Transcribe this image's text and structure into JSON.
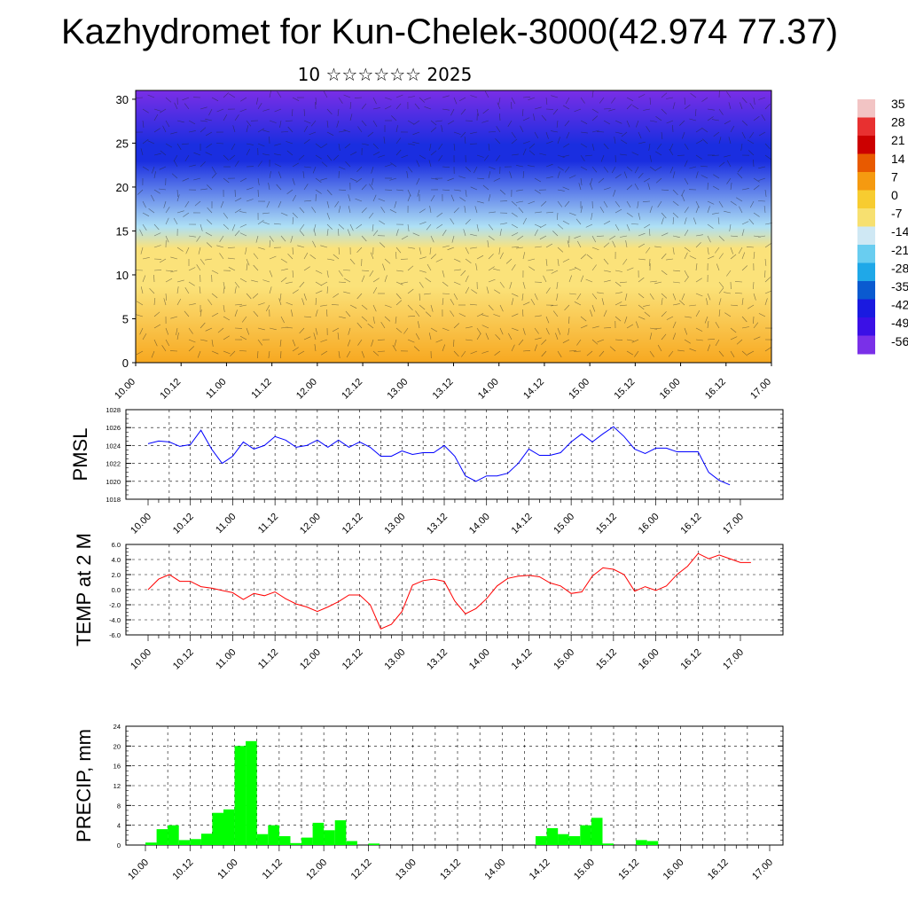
{
  "title": "Kazhydromet for Kun-Chelek-3000(42.974 77.37)",
  "subtitle": "10 ☆☆☆☆☆☆ 2025",
  "chart_data": [
    {
      "type": "heatmap",
      "ylabel": "",
      "ylim": [
        0,
        31
      ],
      "yticks": [
        0,
        5,
        10,
        15,
        20,
        25,
        30
      ],
      "x_tick_labels": [
        "10.00",
        "10.12",
        "11.00",
        "11.12",
        "12.00",
        "12.12",
        "13.00",
        "13.12",
        "14.00",
        "14.12",
        "15.00",
        "15.12",
        "16.00",
        "16.12",
        "17.00"
      ],
      "colorbar_labels": [
        "35",
        "28",
        "21",
        "14",
        "7",
        "0",
        "-7",
        "-14",
        "-21",
        "-28",
        "-35",
        "-42",
        "-49",
        "-56"
      ],
      "colorbar_colors": [
        "#f2c4c4",
        "#e83030",
        "#cc0000",
        "#e85a00",
        "#f59a10",
        "#f7cc30",
        "#f7e070",
        "#cfe8f4",
        "#69cdf0",
        "#1fa8e8",
        "#0a5ad0",
        "#1a1ae0",
        "#3b10e6",
        "#7a30e8"
      ],
      "field_colors": {
        "low": "#f7a820",
        "mid": "#fbe27a",
        "transition": "#aee0f5",
        "cold": "#1a2ee0",
        "top": "#7a2ee6"
      },
      "annotation": "wind barbs overlay"
    },
    {
      "type": "line",
      "ylabel": "PMSL",
      "ylim": [
        1018,
        1028
      ],
      "yticks": [
        1018,
        1020,
        1022,
        1024,
        1026,
        1028
      ],
      "x_tick_labels": [
        "10.00",
        "10.12",
        "11.00",
        "11.12",
        "12.00",
        "12.12",
        "13.00",
        "13.12",
        "14.00",
        "14.12",
        "15.00",
        "15.12",
        "16.00",
        "16.12",
        "17.00"
      ],
      "series": [
        {
          "color": "#0000ff",
          "x_start": 0,
          "x_step": 3,
          "values": [
            1024.2,
            1024.5,
            1024.4,
            1023.9,
            1024.1,
            1025.7,
            1023.6,
            1022.0,
            1022.8,
            1024.4,
            1023.6,
            1024.0,
            1025.0,
            1024.6,
            1023.8,
            1024.0,
            1024.6,
            1023.8,
            1024.6,
            1023.8,
            1024.4,
            1023.8,
            1022.8,
            1022.8,
            1023.4,
            1023.0,
            1023.2,
            1023.2,
            1024.0,
            1022.8,
            1020.6,
            1020.0,
            1020.6,
            1020.6,
            1020.9,
            1022.0,
            1023.6,
            1022.9,
            1022.9,
            1023.2,
            1024.4,
            1025.3,
            1024.4,
            1025.3,
            1026.1,
            1025.0,
            1023.6,
            1023.1,
            1023.7,
            1023.7,
            1023.3,
            1023.3,
            1023.3,
            1021.0,
            1020.1,
            1019.6
          ]
        }
      ]
    },
    {
      "type": "line",
      "ylabel": "TEMP at 2 M",
      "ylim": [
        -6,
        6
      ],
      "yticks": [
        -6,
        -4,
        -2,
        0,
        2,
        4,
        6
      ],
      "ytick_labels": [
        "-6.0",
        "-4.0",
        "-2.0",
        "0.0",
        "2.0",
        "4.0",
        "6.0"
      ],
      "x_tick_labels": [
        "10.00",
        "10.12",
        "11.00",
        "11.12",
        "12.00",
        "12.12",
        "13.00",
        "13.12",
        "14.00",
        "14.12",
        "15.00",
        "15.12",
        "16.00",
        "16.12",
        "17.00"
      ],
      "series": [
        {
          "color": "#ff0000",
          "x_start": 0,
          "x_step": 3,
          "values": [
            0.0,
            1.4,
            2.0,
            1.1,
            1.1,
            0.4,
            0.2,
            -0.1,
            -0.4,
            -1.3,
            -0.5,
            -0.8,
            -0.3,
            -1.2,
            -1.9,
            -2.3,
            -2.9,
            -2.3,
            -1.6,
            -0.7,
            -0.7,
            -2.0,
            -5.2,
            -4.6,
            -2.9,
            0.6,
            1.2,
            1.4,
            1.1,
            -1.5,
            -3.2,
            -2.5,
            -1.2,
            0.5,
            1.5,
            1.8,
            1.9,
            1.7,
            0.9,
            0.5,
            -0.5,
            -0.3,
            1.8,
            2.9,
            2.7,
            2.0,
            -0.2,
            0.4,
            -0.1,
            0.5,
            2.0,
            3.1,
            4.8,
            4.1,
            4.6,
            4.1,
            3.6,
            3.6
          ]
        }
      ]
    },
    {
      "type": "bar",
      "ylabel": "PRECIP, mm",
      "ylim": [
        0,
        24
      ],
      "yticks": [
        0,
        4,
        8,
        12,
        16,
        20,
        24
      ],
      "x_tick_labels": [
        "10.00",
        "10.12",
        "11.00",
        "11.12",
        "12.00",
        "12.12",
        "13.00",
        "13.12",
        "14.00",
        "14.12",
        "15.00",
        "15.12",
        "16.00",
        "16.12",
        "17.00"
      ],
      "series": [
        {
          "color": "#00ff00",
          "x_start": 0,
          "x_step": 3,
          "values": [
            0.5,
            3.2,
            4.0,
            1.0,
            1.2,
            2.3,
            6.5,
            7.2,
            20.0,
            21.0,
            2.2,
            4.0,
            1.8,
            0.4,
            1.5,
            4.5,
            3.0,
            5.0,
            0.8,
            0,
            0.3,
            0,
            0,
            0,
            0,
            0,
            0,
            0,
            0,
            0,
            0,
            0,
            0,
            0,
            0,
            1.8,
            3.4,
            2.2,
            1.8,
            4.0,
            5.5,
            0.3,
            0,
            0,
            1.0,
            0.8,
            0,
            0,
            0,
            0,
            0,
            0,
            0,
            0,
            0,
            0
          ]
        }
      ]
    }
  ]
}
